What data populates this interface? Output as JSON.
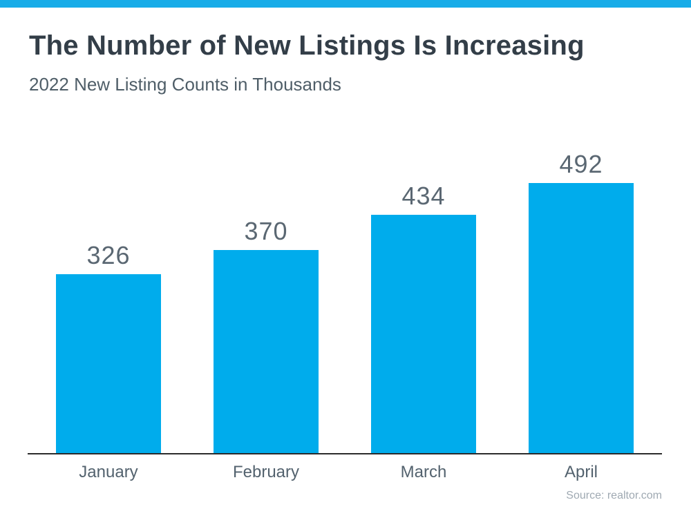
{
  "header": {
    "title": "The Number of New Listings Is Increasing",
    "subtitle": "2022 New Listing Counts in Thousands"
  },
  "footer": {
    "source": "Source: realtor.com"
  },
  "colors": {
    "accent": "#18ACE8",
    "bar_color": "#00ACEC",
    "title_text": "#333E48",
    "subtitle_text": "#4F5E68",
    "value_label": "#5A6772",
    "month_label": "#53626E",
    "axis_line": "#2B2B2B",
    "source_text": "#9FA9B2"
  },
  "chart_data": {
    "type": "bar",
    "categories": [
      "January",
      "February",
      "March",
      "April"
    ],
    "values": [
      326,
      370,
      434,
      492
    ],
    "title": "The Number of New Listings Is Increasing",
    "subtitle": "2022 New Listing Counts in Thousands",
    "xlabel": "",
    "ylabel": "",
    "ylim": [
      0,
      500
    ],
    "gridlines": false,
    "legend": false,
    "value_labels_shown": true,
    "bar_color": "#00ACEC",
    "source": "Source: realtor.com"
  }
}
